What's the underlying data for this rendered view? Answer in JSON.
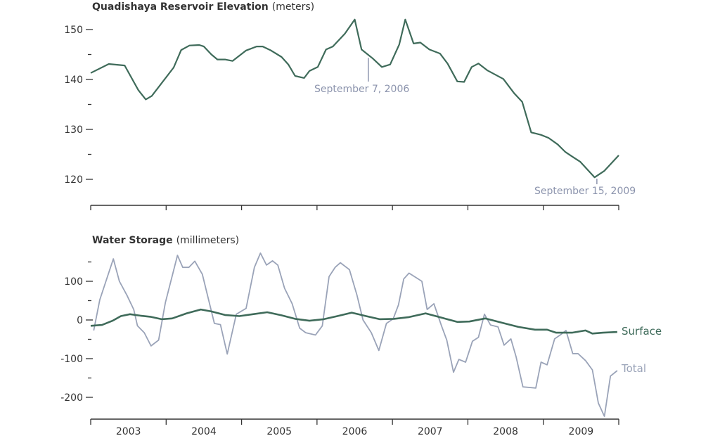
{
  "colors": {
    "surface": "#3f6b5a",
    "total": "#9aa3b8",
    "elevation": "#3f6b5a",
    "annotation": "#8c94ad",
    "axis": "#333333"
  },
  "chart_data": [
    {
      "type": "line",
      "title": "Quadishaya Reservoir Elevation",
      "unit": "(meters)",
      "xlim": [
        2003,
        2010
      ],
      "ylim": [
        117,
        153
      ],
      "yticks": [
        120,
        130,
        140,
        150
      ],
      "yminor": [
        125,
        135,
        145
      ],
      "grid": false,
      "series": [
        {
          "name": "Elevation",
          "x": [
            2003.0,
            2003.24,
            2003.45,
            2003.63,
            2003.73,
            2003.81,
            2004.1,
            2004.2,
            2004.31,
            2004.44,
            2004.5,
            2004.6,
            2004.68,
            2004.78,
            2004.88,
            2005.06,
            2005.2,
            2005.28,
            2005.39,
            2005.53,
            2005.62,
            2005.71,
            2005.83,
            2005.9,
            2006.01,
            2006.12,
            2006.21,
            2006.37,
            2006.5,
            2006.59,
            2006.74,
            2006.86,
            2006.97,
            2007.09,
            2007.17,
            2007.28,
            2007.37,
            2007.49,
            2007.63,
            2007.73,
            2007.86,
            2007.95,
            2008.05,
            2008.14,
            2008.26,
            2008.47,
            2008.61,
            2008.72,
            2008.84,
            2008.97,
            2009.07,
            2009.19,
            2009.29,
            2009.4,
            2009.49,
            2009.68,
            2009.81,
            2010.0
          ],
          "y": [
            141.3,
            143.1,
            142.8,
            137.9,
            136.0,
            136.7,
            142.4,
            145.9,
            146.8,
            146.9,
            146.6,
            145.0,
            144.0,
            144.0,
            143.7,
            145.8,
            146.6,
            146.6,
            145.8,
            144.5,
            143.0,
            140.7,
            140.3,
            141.7,
            142.5,
            146.0,
            146.6,
            149.2,
            152.0,
            146.0,
            144.2,
            142.5,
            143.0,
            147.0,
            152.0,
            147.2,
            147.4,
            146.0,
            145.2,
            143.2,
            139.6,
            139.5,
            142.5,
            143.2,
            141.8,
            140.1,
            137.3,
            135.5,
            129.4,
            128.9,
            128.3,
            127.0,
            125.5,
            124.4,
            123.5,
            120.4,
            121.7,
            124.8
          ]
        }
      ],
      "annotations": [
        {
          "label": "September 7, 2006",
          "x": 2006.68,
          "y": 144.6
        },
        {
          "label": "September 15, 2009",
          "x": 2009.71,
          "y": 120.4
        }
      ]
    },
    {
      "type": "line",
      "title": "Water Storage",
      "unit": "(millimeters)",
      "xlim": [
        2003,
        2010
      ],
      "ylim": [
        -255,
        175
      ],
      "yticks": [
        100,
        0,
        -100,
        -200
      ],
      "yminor": [
        150,
        50,
        -50,
        -150
      ],
      "xticklabels": [
        "2003",
        "2004",
        "2005",
        "2006",
        "2007",
        "2008",
        "2009"
      ],
      "grid": false,
      "series": [
        {
          "name": "Surface",
          "x": [
            2003.0,
            2003.15,
            2003.29,
            2003.4,
            2003.52,
            2003.66,
            2003.8,
            2003.94,
            2004.08,
            2004.27,
            2004.46,
            2004.6,
            2004.78,
            2004.97,
            2005.15,
            2005.34,
            2005.53,
            2005.71,
            2005.9,
            2006.09,
            2006.27,
            2006.46,
            2006.65,
            2006.83,
            2007.02,
            2007.21,
            2007.44,
            2007.67,
            2007.86,
            2008.02,
            2008.23,
            2008.45,
            2008.67,
            2008.89,
            2009.05,
            2009.17,
            2009.38,
            2009.56,
            2009.65,
            2009.79,
            2009.98
          ],
          "y": [
            -15,
            -13,
            -2,
            10,
            15,
            11,
            8,
            2,
            4,
            17,
            27,
            22,
            13,
            10,
            15,
            20,
            12,
            3,
            -2,
            2,
            10,
            19,
            10,
            2,
            3,
            7,
            17,
            5,
            -5,
            -4,
            4,
            -7,
            -18,
            -25,
            -25,
            -33,
            -33,
            -27,
            -35,
            -33,
            -31
          ]
        },
        {
          "name": "Total",
          "x": [
            2003.04,
            2003.12,
            2003.3,
            2003.38,
            2003.48,
            2003.57,
            2003.62,
            2003.71,
            2003.8,
            2003.9,
            2003.99,
            2004.15,
            2004.22,
            2004.3,
            2004.38,
            2004.48,
            2004.64,
            2004.72,
            2004.81,
            2004.93,
            2005.06,
            2005.17,
            2005.25,
            2005.33,
            2005.41,
            2005.48,
            2005.57,
            2005.67,
            2005.77,
            2005.85,
            2005.98,
            2006.07,
            2006.16,
            2006.24,
            2006.31,
            2006.43,
            2006.53,
            2006.61,
            2006.72,
            2006.82,
            2006.92,
            2007.01,
            2007.08,
            2007.15,
            2007.22,
            2007.39,
            2007.46,
            2007.55,
            2007.65,
            2007.72,
            2007.81,
            2007.88,
            2007.97,
            2008.06,
            2008.14,
            2008.22,
            2008.3,
            2008.4,
            2008.48,
            2008.57,
            2008.64,
            2008.73,
            2008.9,
            2008.97,
            2009.05,
            2009.15,
            2009.23,
            2009.3,
            2009.39,
            2009.46,
            2009.56,
            2009.65,
            2009.73,
            2009.81,
            2009.89,
            2009.98
          ],
          "y": [
            -27,
            52,
            158,
            100,
            64,
            27,
            -15,
            -33,
            -67,
            -52,
            45,
            167,
            136,
            136,
            152,
            118,
            -9,
            -12,
            -88,
            15,
            30,
            136,
            173,
            142,
            153,
            142,
            82,
            42,
            -21,
            -33,
            -39,
            -15,
            112,
            136,
            148,
            130,
            64,
            0,
            -33,
            -79,
            -9,
            3,
            39,
            106,
            121,
            100,
            27,
            42,
            -15,
            -52,
            -135,
            -102,
            -109,
            -55,
            -45,
            15,
            -13,
            -18,
            -65,
            -49,
            -96,
            -173,
            -176,
            -109,
            -116,
            -49,
            -38,
            -27,
            -87,
            -87,
            -105,
            -129,
            -215,
            -249,
            -145,
            -131
          ]
        }
      ]
    }
  ]
}
